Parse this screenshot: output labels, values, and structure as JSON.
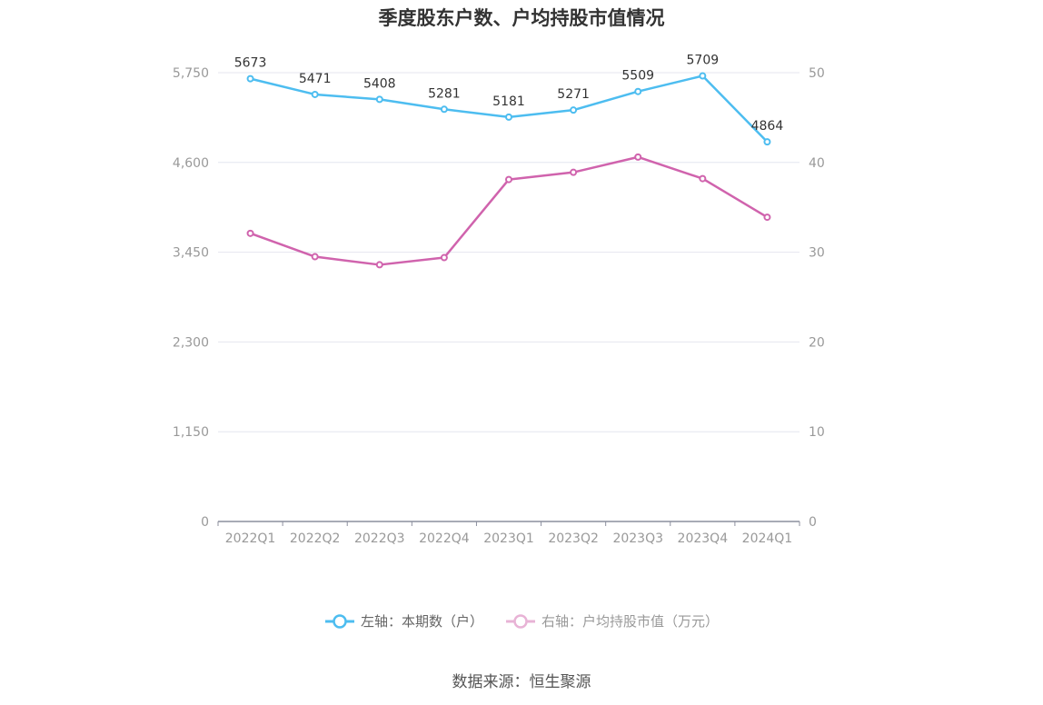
{
  "title": "季度股东户数、户均持股市值情况",
  "source": "数据来源：恒生聚源",
  "legend": {
    "left": "左轴：本期数（户）",
    "right": "右轴：户均持股市值（万元）"
  },
  "colors": {
    "left": "#4dbdf0",
    "right": "#d063ad",
    "grid": "#e4e6ef",
    "axis": "#8c8f9e"
  },
  "chart_data": {
    "type": "line",
    "categories": [
      "2022Q1",
      "2022Q2",
      "2022Q3",
      "2022Q4",
      "2023Q1",
      "2023Q2",
      "2023Q3",
      "2023Q4",
      "2024Q1"
    ],
    "y_left": {
      "ticks": [
        "0",
        "1,150",
        "2,300",
        "3,450",
        "4,600",
        "5,750"
      ],
      "range": [
        0,
        5750
      ]
    },
    "y_right": {
      "ticks": [
        "0",
        "10",
        "20",
        "30",
        "40",
        "50"
      ],
      "range": [
        0,
        50
      ]
    },
    "series": [
      {
        "name": "左轴：本期数（户）",
        "axis": "left",
        "values": [
          5673,
          5471,
          5408,
          5281,
          5181,
          5271,
          5509,
          5709,
          4864
        ],
        "labels": [
          "5673",
          "5471",
          "5408",
          "5281",
          "5181",
          "5271",
          "5509",
          "5709",
          "4864"
        ]
      },
      {
        "name": "右轴：户均持股市值（万元）",
        "axis": "right",
        "values": [
          32.1,
          29.5,
          28.6,
          29.4,
          38.1,
          38.9,
          40.6,
          38.2,
          33.9
        ]
      }
    ],
    "grid": true,
    "legend_position": "bottom"
  }
}
